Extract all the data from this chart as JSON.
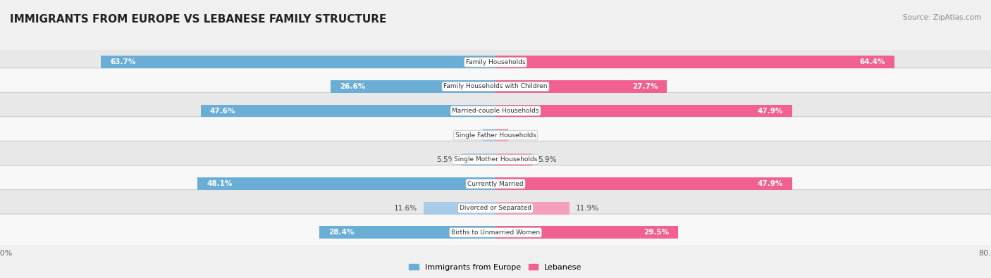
{
  "title": "IMMIGRANTS FROM EUROPE VS LEBANESE FAMILY STRUCTURE",
  "source": "Source: ZipAtlas.com",
  "categories": [
    "Family Households",
    "Family Households with Children",
    "Married-couple Households",
    "Single Father Households",
    "Single Mother Households",
    "Currently Married",
    "Divorced or Separated",
    "Births to Unmarried Women"
  ],
  "europe_values": [
    63.7,
    26.6,
    47.6,
    2.0,
    5.5,
    48.1,
    11.6,
    28.4
  ],
  "lebanese_values": [
    64.4,
    27.7,
    47.9,
    2.1,
    5.9,
    47.9,
    11.9,
    29.5
  ],
  "max_value": 80.0,
  "europe_color_large": "#6aaed6",
  "europe_color_small": "#aacce8",
  "lebanese_color_large": "#f06090",
  "lebanese_color_small": "#f4a0be",
  "europe_label": "Immigrants from Europe",
  "lebanese_label": "Lebanese",
  "background_color": "#f0f0f0",
  "row_bg_even": "#e8e8e8",
  "row_bg_odd": "#f8f8f8",
  "large_threshold": 15
}
